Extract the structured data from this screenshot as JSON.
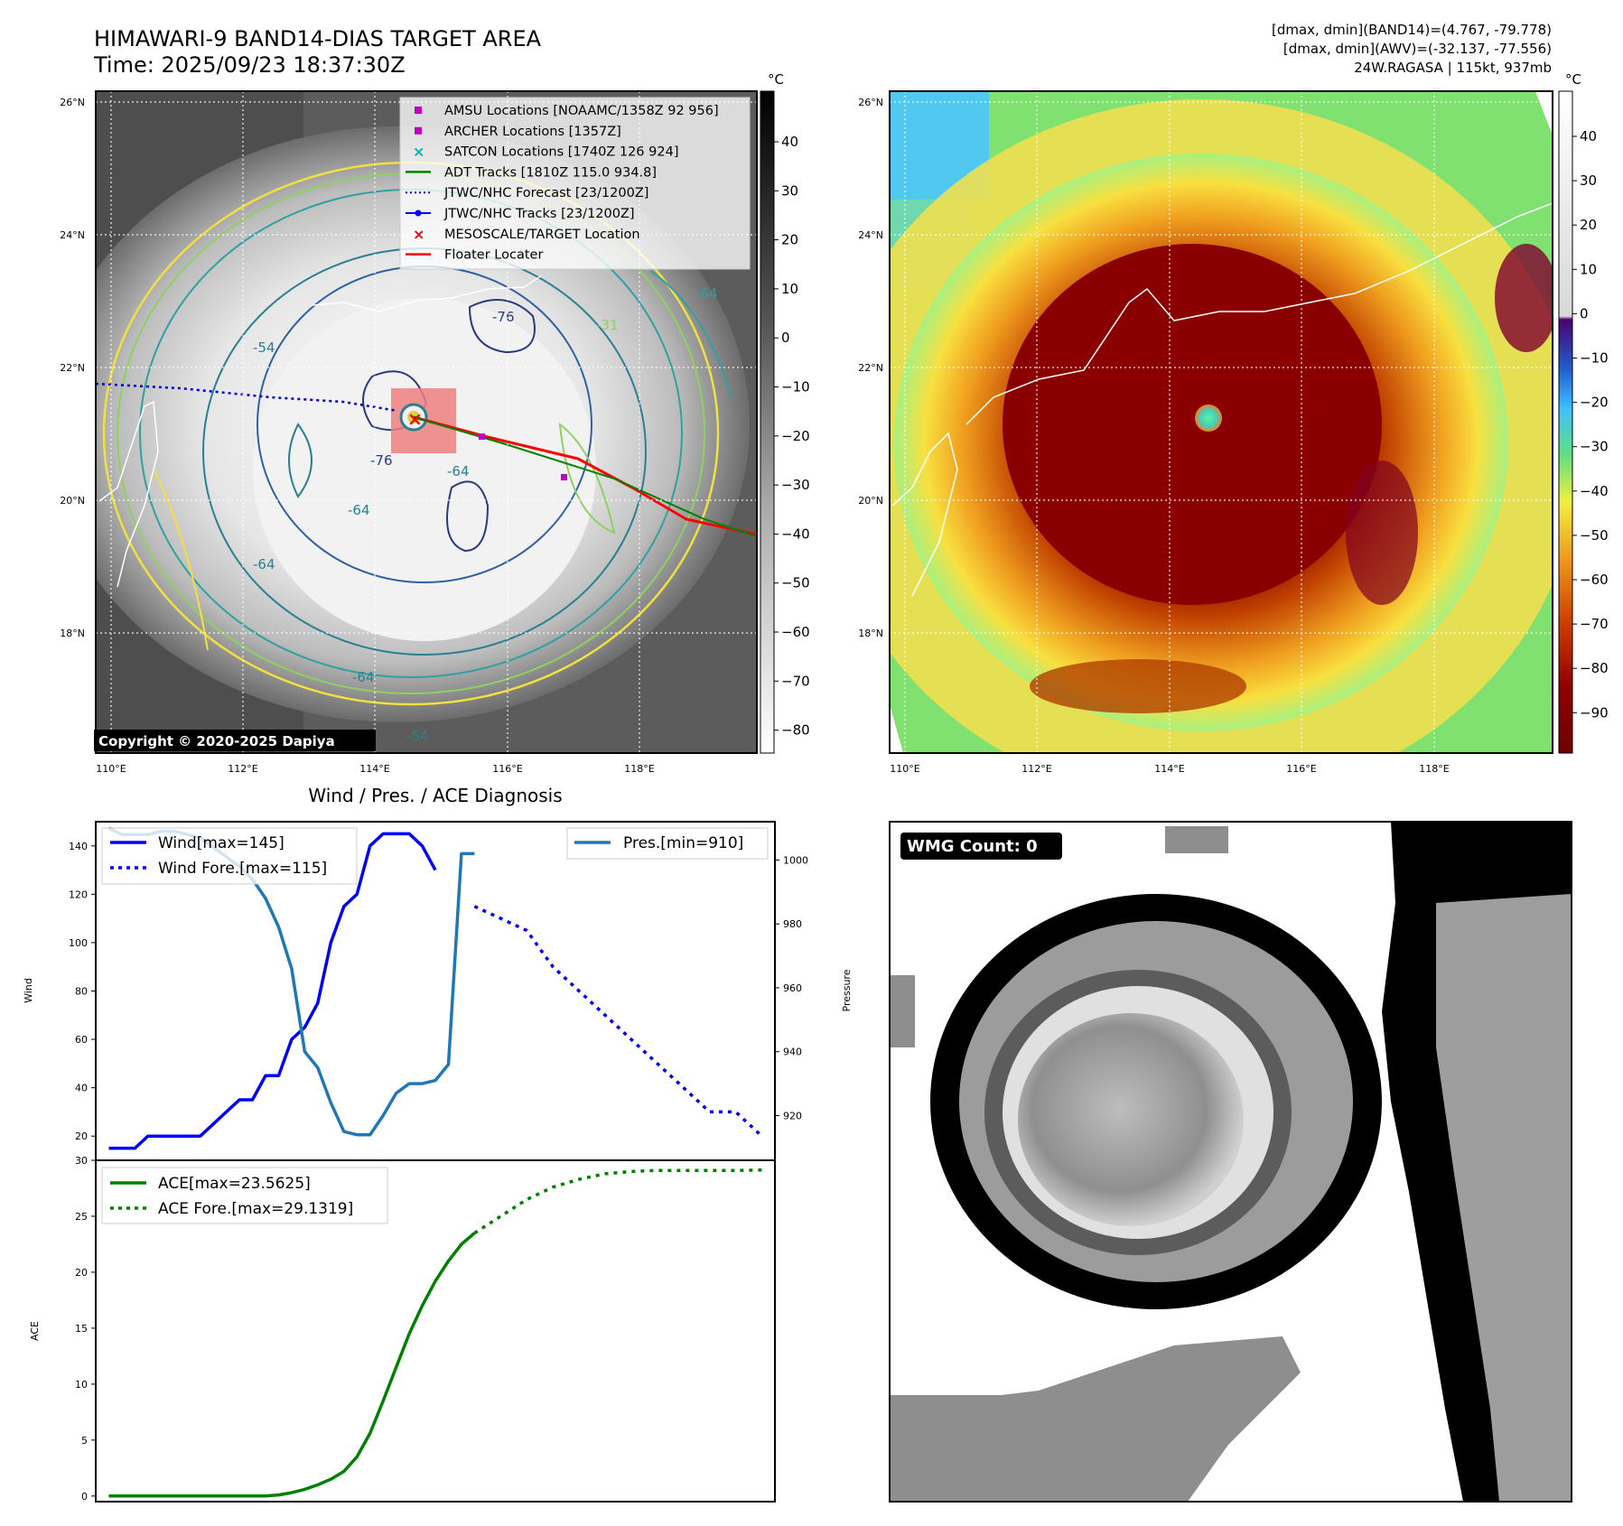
{
  "header": {
    "title": "HIMAWARI-9 BAND14-DIAS TARGET AREA",
    "time": "Time: 2025/09/23 18:37:30Z",
    "info_lines": [
      "[dmax, dmin](BAND14)=(4.767, -79.778)",
      "[dmax, dmin](AWV)=(-32.137, -77.556)",
      "24W.RAGASA | 115kt, 937mb"
    ]
  },
  "maps": {
    "lat_ticks": [
      "26°N",
      "24°N",
      "22°N",
      "20°N",
      "18°N"
    ],
    "lon_ticks": [
      "110°E",
      "112°E",
      "114°E",
      "116°E",
      "118°E"
    ],
    "copyright": "Copyright © 2020-2025 Dapiya",
    "ir_colorbar": {
      "unit": "°C",
      "ticks": [
        "40",
        "30",
        "20",
        "10",
        "0",
        "−10",
        "−20",
        "−30",
        "−40",
        "−50",
        "−60",
        "−70",
        "−80"
      ]
    },
    "awv_colorbar": {
      "unit": "°C",
      "ticks": [
        "40",
        "30",
        "20",
        "10",
        "0",
        "−10",
        "−20",
        "−30",
        "−40",
        "−50",
        "−60",
        "−70",
        "−80",
        "−90"
      ]
    },
    "contour_labels": [
      "-64",
      "-76",
      "-54",
      "-31",
      "-64",
      "-76",
      "-64",
      "-64",
      "-54",
      "-64"
    ],
    "legend": [
      {
        "label": "AMSU Locations [NOAAMC/1358Z 92 956]",
        "color": "#c000c0",
        "marker": "square"
      },
      {
        "label": "ARCHER Locations [1357Z]",
        "color": "#c000c0",
        "marker": "square"
      },
      {
        "label": "SATCON Locations [1740Z 126 924]",
        "color": "#00b0b0",
        "marker": "x"
      },
      {
        "label": "ADT Tracks [1810Z 115.0 934.8]",
        "color": "#008000",
        "marker": "line"
      },
      {
        "label": "JTWC/NHC Forecast [23/1200Z]",
        "color": "#0000cc",
        "marker": "dotted"
      },
      {
        "label": "JTWC/NHC Tracks [23/1200Z]",
        "color": "#0000ff",
        "marker": "line-dot"
      },
      {
        "label": "MESOSCALE/TARGET Location",
        "color": "#ff0000",
        "marker": "x"
      },
      {
        "label": "Floater Locater",
        "color": "#ff0000",
        "marker": "line"
      }
    ]
  },
  "wmg_label": "WMG Count: 0",
  "chart_data": [
    {
      "type": "line",
      "title": "Wind / Pres. / ACE Diagnosis",
      "ylabel": "Wind",
      "ylabel_right": "Pressure",
      "ylim": [
        10,
        150
      ],
      "ylim_right": [
        906,
        1012
      ],
      "yticks": [
        20,
        40,
        60,
        80,
        100,
        120,
        140
      ],
      "yticks_right": [
        920,
        940,
        960,
        980,
        1000
      ],
      "series": [
        {
          "name": "Wind[max=145]",
          "color": "#0000ff",
          "style": "solid",
          "x": [
            0,
            1,
            2,
            3,
            4,
            5,
            6,
            7,
            8,
            9,
            10,
            11,
            12,
            13,
            14,
            15,
            16,
            17,
            18,
            19,
            20,
            21,
            22,
            23,
            24,
            25
          ],
          "values": [
            15,
            15,
            15,
            20,
            20,
            20,
            20,
            20,
            25,
            30,
            35,
            35,
            45,
            45,
            60,
            65,
            75,
            100,
            115,
            120,
            140,
            145,
            145,
            145,
            140,
            130
          ]
        },
        {
          "name": "Wind Fore.[max=115]",
          "color": "#0000ff",
          "style": "dotted",
          "x": [
            28,
            30,
            32,
            34,
            36,
            38,
            40,
            42,
            44,
            46,
            48,
            50
          ],
          "values": [
            115,
            110,
            105,
            90,
            80,
            70,
            60,
            50,
            40,
            30,
            30,
            20
          ]
        },
        {
          "name": "Pres.[min=910]",
          "color": "#1f77b4",
          "style": "solid",
          "x": [
            0,
            1,
            2,
            3,
            4,
            5,
            6,
            7,
            8,
            9,
            10,
            11,
            12,
            13,
            14,
            15,
            16,
            17,
            18,
            19,
            20,
            21,
            22,
            23,
            24,
            25,
            26,
            27,
            28
          ],
          "values": [
            1010,
            1008,
            1008,
            1008,
            1009,
            1009,
            1008,
            1007,
            1004,
            1001,
            998,
            994,
            988,
            979,
            966,
            940,
            935,
            924,
            915,
            914,
            914,
            920,
            927,
            930,
            930,
            931,
            936,
            1002,
            1002
          ]
        }
      ]
    },
    {
      "type": "line",
      "ylabel": "ACE",
      "ylim": [
        -0.5,
        30
      ],
      "yticks": [
        0,
        5,
        10,
        15,
        20,
        25,
        30
      ],
      "series": [
        {
          "name": "ACE[max=23.5625]",
          "color": "#008000",
          "style": "solid",
          "x": [
            0,
            2,
            4,
            6,
            8,
            10,
            12,
            13,
            14,
            15,
            16,
            17,
            18,
            19,
            20,
            21,
            22,
            23,
            24,
            25,
            26,
            27,
            28
          ],
          "values": [
            0,
            0,
            0,
            0,
            0,
            0,
            0,
            0.1,
            0.3,
            0.6,
            1.0,
            1.5,
            2.2,
            3.5,
            5.6,
            8.5,
            11.5,
            14.5,
            17.0,
            19.2,
            21.0,
            22.5,
            23.5
          ]
        },
        {
          "name": "ACE Fore.[max=29.1319]",
          "color": "#008000",
          "style": "dotted",
          "x": [
            28,
            30,
            32,
            34,
            36,
            38,
            40,
            42,
            44,
            46,
            48,
            50
          ],
          "values": [
            23.5,
            25.0,
            26.5,
            27.6,
            28.3,
            28.8,
            29.0,
            29.1,
            29.1,
            29.1,
            29.1,
            29.13
          ]
        }
      ]
    }
  ]
}
